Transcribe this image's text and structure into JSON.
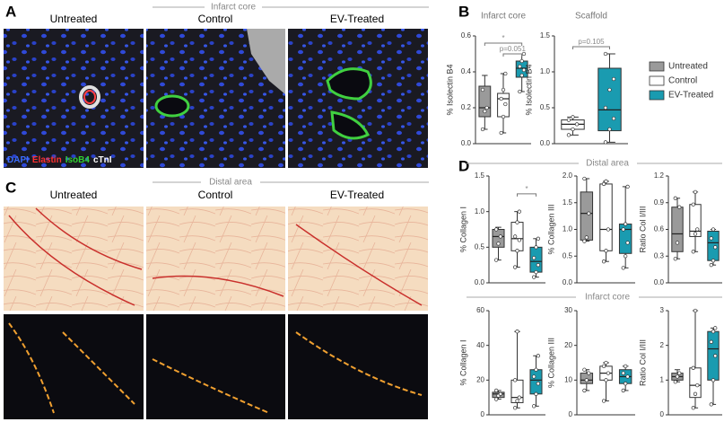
{
  "panel_labels": [
    "A",
    "B",
    "C",
    "D"
  ],
  "section_headers": [
    "Infarct core",
    "Distal area",
    "Distal area",
    "Infarct core"
  ],
  "panel_a_columns": [
    "Untreated",
    "Control",
    "EV-Treated"
  ],
  "panel_c_columns": [
    "Untreated",
    "Control",
    "EV-Treated"
  ],
  "stain_legend": [
    {
      "name": "DAPI",
      "color": "#3b6cff"
    },
    {
      "name": "Elastin",
      "color": "#ff3030"
    },
    {
      "name": "IsoB4",
      "color": "#30d030"
    },
    {
      "name": "cTnI",
      "color": "#ffffff"
    }
  ],
  "legend": [
    {
      "name": "Untreated",
      "color": "#9a9a9a"
    },
    {
      "name": "Control",
      "color": "#ffffff"
    },
    {
      "name": "EV-Treated",
      "color": "#1a9bb0"
    }
  ],
  "chart_data": [
    {
      "type": "box",
      "title": "Infarct core",
      "ylabel": "% Isolectin B4",
      "ylim": [
        0,
        0.6
      ],
      "yticks": [
        {
          "value": 0,
          "label": "0.0"
        },
        0.2,
        0.4,
        0.6
      ],
      "series": [
        {
          "color": "#9a9a9a",
          "stats": [
            0.08,
            0.15,
            0.2,
            0.32,
            0.38
          ],
          "points": [
            0.08,
            0.18,
            0.2,
            0.3
          ]
        },
        {
          "color": "#ffffff",
          "stats": [
            0.06,
            0.15,
            0.25,
            0.28,
            0.39
          ],
          "points": [
            0.06,
            0.15,
            0.22,
            0.25,
            0.3,
            0.39
          ]
        },
        {
          "color": "#1a9bb0",
          "stats": [
            0.29,
            0.37,
            0.42,
            0.46,
            0.5
          ],
          "points": [
            0.29,
            0.38,
            0.41,
            0.43,
            0.46,
            0.5
          ]
        }
      ],
      "annotations": [
        {
          "text": "*",
          "from": 0,
          "to": 2,
          "y": 0.56
        },
        {
          "text": "p=0.051",
          "from": 1,
          "to": 2,
          "y": 0.5
        }
      ]
    },
    {
      "type": "box",
      "title": "Scaffold",
      "ylabel": "% Isolectin B4",
      "ylim": [
        0,
        1.5
      ],
      "yticks": [
        {
          "value": 0,
          "label": "0.0"
        },
        0.5,
        {
          "value": 1,
          "label": "1.0"
        },
        1.5
      ],
      "series": [
        {
          "color": "#ffffff",
          "stats": [
            0.12,
            0.2,
            0.27,
            0.33,
            0.37
          ],
          "points": [
            0.12,
            0.2,
            0.27,
            0.33,
            0.37
          ]
        },
        {
          "color": "#1a9bb0",
          "stats": [
            0.02,
            0.18,
            0.47,
            1.05,
            1.25
          ],
          "points": [
            0.02,
            0.2,
            0.35,
            0.5,
            0.75,
            0.9,
            1.25
          ]
        }
      ],
      "annotations": [
        {
          "text": "p=0.105",
          "from": 0,
          "to": 1,
          "y": 1.35
        }
      ]
    },
    {
      "type": "box",
      "ylabel": "% Collagen I",
      "ylim": [
        0,
        1.5
      ],
      "yticks": [
        {
          "value": 0,
          "label": "0.0"
        },
        0.5,
        {
          "value": 1,
          "label": "1.0"
        },
        1.5
      ],
      "series": [
        {
          "color": "#9a9a9a",
          "stats": [
            0.32,
            0.5,
            0.65,
            0.75,
            0.78
          ],
          "points": [
            0.32,
            0.55,
            0.65,
            0.75
          ]
        },
        {
          "color": "#ffffff",
          "stats": [
            0.22,
            0.45,
            0.62,
            0.85,
            1.0
          ],
          "points": [
            0.22,
            0.45,
            0.6,
            0.65,
            0.85,
            1.0
          ]
        },
        {
          "color": "#1a9bb0",
          "stats": [
            0.08,
            0.15,
            0.3,
            0.5,
            0.62
          ],
          "points": [
            0.08,
            0.15,
            0.25,
            0.35,
            0.5,
            0.62
          ]
        }
      ],
      "annotations": [
        {
          "text": "*",
          "from": 1,
          "to": 2,
          "y": 1.25
        }
      ]
    },
    {
      "type": "box",
      "ylabel": "% Collagen III",
      "ylim": [
        0,
        2
      ],
      "yticks": [
        {
          "value": 0,
          "label": "0.0"
        },
        0.5,
        {
          "value": 1,
          "label": "1.0"
        },
        1.5,
        {
          "value": 2,
          "label": "2.0"
        }
      ],
      "series": [
        {
          "color": "#9a9a9a",
          "stats": [
            0.78,
            0.8,
            1.3,
            1.7,
            1.95
          ],
          "points": [
            0.78,
            0.85,
            1.3,
            1.95
          ]
        },
        {
          "color": "#ffffff",
          "stats": [
            0.4,
            0.6,
            1.0,
            1.85,
            1.9
          ],
          "points": [
            0.4,
            0.6,
            1.0,
            1.85,
            1.9
          ]
        },
        {
          "color": "#1a9bb0",
          "stats": [
            0.28,
            0.55,
            1.0,
            1.1,
            1.8
          ],
          "points": [
            0.28,
            0.5,
            0.75,
            1.0,
            1.1,
            1.8
          ]
        }
      ]
    },
    {
      "type": "box",
      "ylabel": "Ratio Col I/III",
      "ylim": [
        0,
        1.2
      ],
      "yticks": [
        {
          "value": 0,
          "label": "0.0"
        },
        0.3,
        0.6,
        0.9,
        1.2
      ],
      "series": [
        {
          "color": "#9a9a9a",
          "stats": [
            0.27,
            0.35,
            0.55,
            0.85,
            0.95
          ],
          "points": [
            0.27,
            0.45,
            0.85,
            0.95
          ]
        },
        {
          "color": "#ffffff",
          "stats": [
            0.35,
            0.52,
            0.58,
            0.88,
            1.02
          ],
          "points": [
            0.35,
            0.55,
            0.6,
            0.88,
            1.02
          ]
        },
        {
          "color": "#1a9bb0",
          "stats": [
            0.2,
            0.25,
            0.45,
            0.58,
            0.6
          ],
          "points": [
            0.2,
            0.25,
            0.4,
            0.5,
            0.6
          ]
        }
      ]
    },
    {
      "type": "box",
      "ylabel": "% Collagen I",
      "ylim": [
        0,
        60
      ],
      "yticks": [
        0,
        20,
        40,
        60
      ],
      "series": [
        {
          "color": "#9a9a9a",
          "stats": [
            9,
            10,
            12,
            13,
            14
          ],
          "points": [
            9,
            11,
            12,
            14
          ]
        },
        {
          "color": "#ffffff",
          "stats": [
            4,
            7,
            10,
            20,
            48
          ],
          "points": [
            4,
            8,
            10,
            20,
            48
          ]
        },
        {
          "color": "#1a9bb0",
          "stats": [
            5,
            12,
            20,
            26,
            34
          ],
          "points": [
            5,
            12,
            18,
            22,
            26,
            34
          ]
        }
      ]
    },
    {
      "type": "box",
      "ylabel": "% Collagen III",
      "ylim": [
        0,
        30
      ],
      "yticks": [
        0,
        10,
        20,
        30
      ],
      "series": [
        {
          "color": "#9a9a9a",
          "stats": [
            7,
            9,
            10,
            12,
            13
          ],
          "points": [
            7,
            10,
            12,
            13
          ]
        },
        {
          "color": "#ffffff",
          "stats": [
            4,
            10,
            12,
            14,
            15
          ],
          "points": [
            4,
            10,
            12,
            14,
            15
          ]
        },
        {
          "color": "#1a9bb0",
          "stats": [
            7,
            9,
            11,
            13,
            14
          ],
          "points": [
            7,
            9,
            11,
            12,
            14
          ]
        }
      ]
    },
    {
      "type": "box",
      "ylabel": "Ratio Col I/III",
      "ylim": [
        0,
        3
      ],
      "yticks": [
        0,
        1,
        2,
        3
      ],
      "series": [
        {
          "color": "#9a9a9a",
          "stats": [
            0.95,
            1.0,
            1.1,
            1.2,
            1.3
          ],
          "points": [
            0.95,
            1.1,
            1.2
          ]
        },
        {
          "color": "#ffffff",
          "stats": [
            0.2,
            0.5,
            0.85,
            1.35,
            3.0
          ],
          "points": [
            0.2,
            0.6,
            0.85,
            1.35,
            3.0
          ]
        },
        {
          "color": "#1a9bb0",
          "stats": [
            0.3,
            1.0,
            1.9,
            2.4,
            2.5
          ],
          "points": [
            0.3,
            1.0,
            1.7,
            2.1,
            2.4,
            2.5
          ]
        }
      ]
    }
  ]
}
